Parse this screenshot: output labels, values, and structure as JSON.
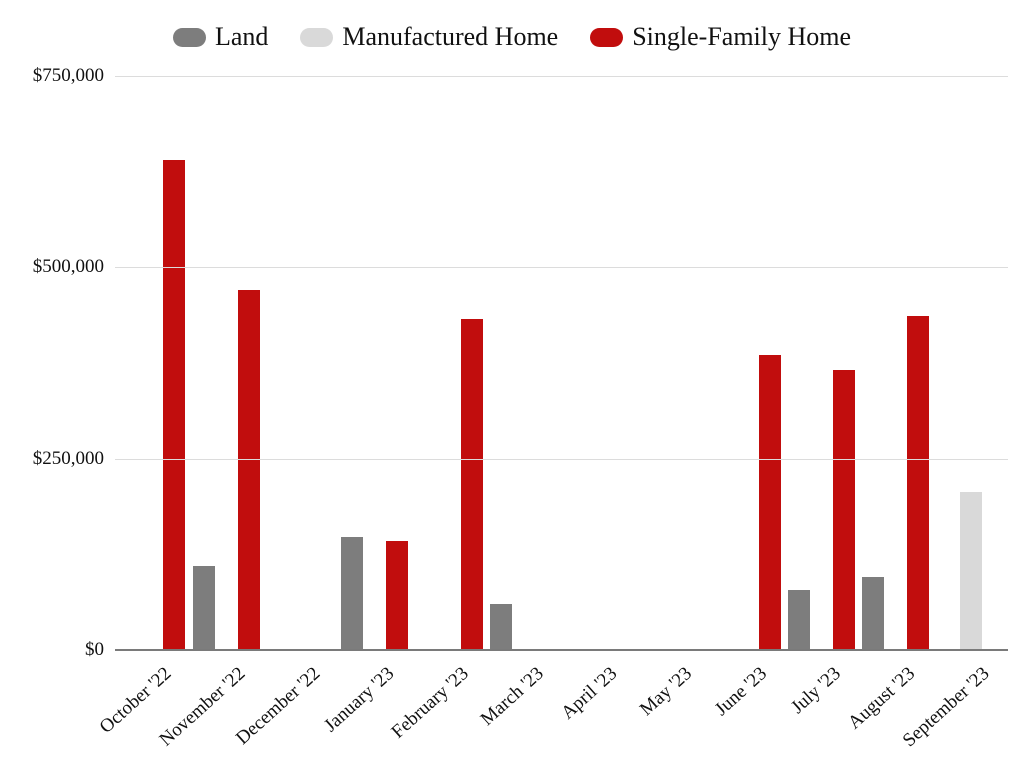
{
  "chart_data": {
    "type": "bar",
    "categories": [
      "October '22",
      "November '22",
      "December '22",
      "January '23",
      "February '23",
      "March '23",
      "April '23",
      "May '23",
      "June '23",
      "July '23",
      "August '23",
      "September '23"
    ],
    "series": [
      {
        "name": "Land",
        "color": "#7d7d7d",
        "values": [
          null,
          110000,
          null,
          148000,
          null,
          60000,
          null,
          null,
          null,
          78000,
          95000,
          null
        ]
      },
      {
        "name": "Manufactured Home",
        "color": "#d9d9d9",
        "values": [
          null,
          null,
          null,
          null,
          null,
          null,
          null,
          null,
          null,
          null,
          null,
          207000
        ]
      },
      {
        "name": "Single-Family Home",
        "color": "#c10d0d",
        "values": [
          640000,
          470000,
          null,
          143000,
          432000,
          null,
          null,
          null,
          386000,
          366000,
          436000,
          null
        ]
      }
    ],
    "title": "",
    "xlabel": "",
    "ylabel": "",
    "ylim": [
      0,
      750000
    ],
    "yticks": [
      {
        "value": 0,
        "label": "$0"
      },
      {
        "value": 250000,
        "label": "$250,000"
      },
      {
        "value": 500000,
        "label": "$500,000"
      },
      {
        "value": 750000,
        "label": "$750,000"
      }
    ],
    "legend_position": "top",
    "grid": true,
    "colors": {
      "gridline": "#dcdcdc",
      "baseline": "#7a7a7a",
      "axis_text": "#111111",
      "background": "#ffffff"
    }
  }
}
